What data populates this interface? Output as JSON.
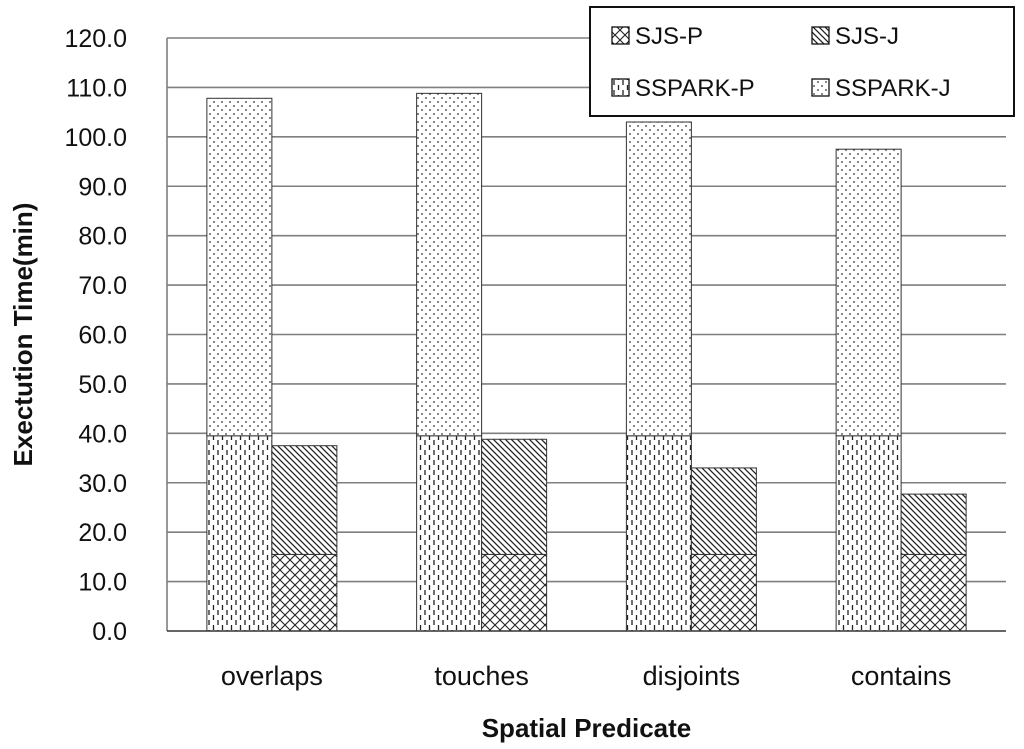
{
  "chart_data": {
    "type": "bar",
    "subtype": "grouped-stacked",
    "categories": [
      "overlaps",
      "touches",
      "disjoints",
      "contains"
    ],
    "xlabel": "Spatial Predicate",
    "ylabel": "Exectution Time(min)",
    "ylim": [
      0,
      120
    ],
    "ytick_step": 10,
    "ytick_labels": [
      "0.0",
      "10.0",
      "20.0",
      "30.0",
      "40.0",
      "50.0",
      "60.0",
      "70.0",
      "80.0",
      "90.0",
      "100.0",
      "110.0",
      "120.0"
    ],
    "grid": true,
    "legend_position": "top-right",
    "stacks": [
      {
        "name": "SSPARK",
        "series": [
          "SSPARK-P",
          "SSPARK-J"
        ]
      },
      {
        "name": "SJS",
        "series": [
          "SJS-P",
          "SJS-J"
        ]
      }
    ],
    "series": [
      {
        "name": "SJS-P",
        "values": [
          15.5,
          15.5,
          15.5,
          15.5
        ],
        "pattern": "crosshatch"
      },
      {
        "name": "SJS-J",
        "values": [
          22,
          23.3,
          17.5,
          12.2
        ],
        "pattern": "diagonal"
      },
      {
        "name": "SSPARK-P",
        "values": [
          39.5,
          39.5,
          39.5,
          39.5
        ],
        "pattern": "dashed-vertical"
      },
      {
        "name": "SSPARK-J",
        "values": [
          68.3,
          69.3,
          63.5,
          58
        ],
        "pattern": "dots"
      }
    ],
    "legend_order": [
      "SJS-P",
      "SJS-J",
      "SSPARK-P",
      "SSPARK-J"
    ]
  }
}
